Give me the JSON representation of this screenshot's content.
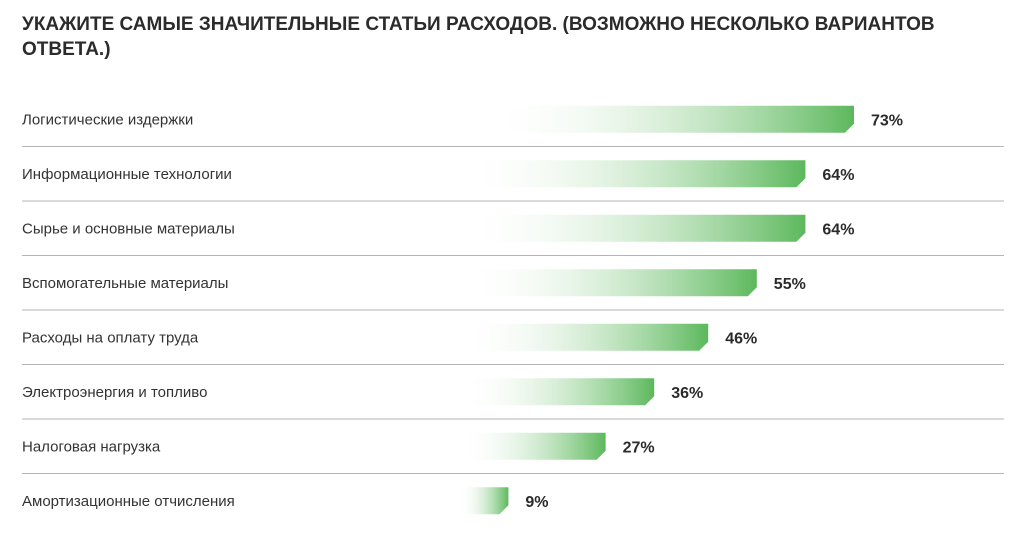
{
  "title": "УКАЖИТЕ САМЫЕ ЗНАЧИТЕЛЬНЫЕ СТАТЬИ РАСХОДОВ. (ВОЗМОЖНО НЕСКОЛЬКО ВАРИАНТОВ ОТВЕТА.)",
  "colors": {
    "bar_start": "#ffffff",
    "bar_end": "#5cb85c",
    "text": "#2b2b2b",
    "separator": "#b5b5b5"
  },
  "chart_data": {
    "type": "bar",
    "orientation": "horizontal",
    "title": "УКАЖИТЕ САМЫЕ ЗНАЧИТЕЛЬНЫЕ СТАТЬИ РАСХОДОВ. (ВОЗМОЖНО НЕСКОЛЬКО ВАРИАНТОВ ОТВЕТА.)",
    "categories": [
      "Логистические издержки",
      "Информационные технологии",
      "Сырье и основные материалы",
      "Вспомогательные материалы",
      "Расходы на оплату труда",
      "Электроэнергия и топливо",
      "Налоговая нагрузка",
      "Амортизационные отчисления"
    ],
    "values": [
      73,
      64,
      64,
      55,
      46,
      36,
      27,
      9
    ],
    "value_labels": [
      "73%",
      "64%",
      "64%",
      "55%",
      "46%",
      "36%",
      "27%",
      "9%"
    ],
    "unit": "%",
    "xlim": [
      0,
      100
    ],
    "grid": false,
    "legend": "none"
  }
}
